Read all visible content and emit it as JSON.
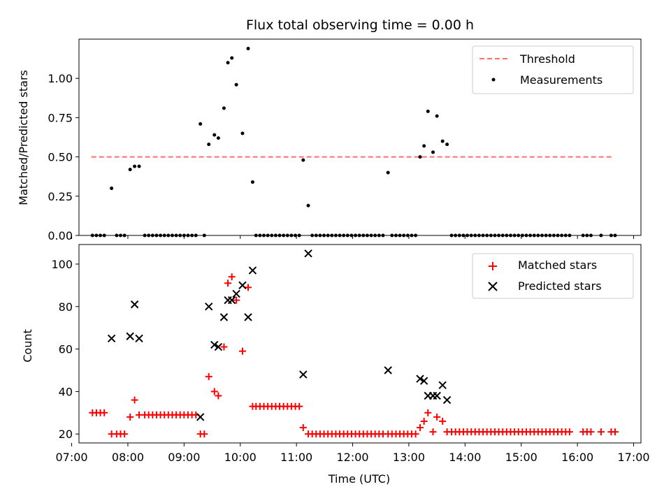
{
  "chart_data": [
    {
      "type": "scatter",
      "title": "Flux total observing time = 0.00 h",
      "xlabel": "",
      "ylabel": "Matched/Predicted stars",
      "xlim": [
        7.13,
        17.13
      ],
      "ylim": [
        0,
        1.25
      ],
      "yticks": [
        "0.00",
        "0.25",
        "0.50",
        "0.75",
        "1.00"
      ],
      "ytick_values": [
        0,
        0.25,
        0.5,
        0.75,
        1.0
      ],
      "threshold": {
        "name": "Threshold",
        "value": 0.5,
        "x_range": [
          7.35,
          16.65
        ],
        "color": "#ff6e6e"
      },
      "legend": [
        "Threshold",
        "Measurements"
      ],
      "series": [
        {
          "name": "Measurements",
          "color": "#000000",
          "x": [
            7.37,
            7.44,
            7.51,
            7.58,
            7.71,
            7.8,
            7.87,
            7.94,
            8.04,
            8.12,
            8.2,
            8.3,
            8.37,
            8.44,
            8.51,
            8.58,
            8.65,
            8.72,
            8.79,
            8.86,
            8.93,
            9.0,
            9.07,
            9.14,
            9.21,
            9.29,
            9.36,
            9.44,
            9.54,
            9.61,
            9.71,
            9.78,
            9.85,
            9.93,
            10.04,
            10.14,
            10.22,
            10.28,
            10.35,
            10.42,
            10.49,
            10.56,
            10.63,
            10.7,
            10.77,
            10.84,
            10.91,
            10.98,
            11.05,
            11.12,
            11.21,
            11.28,
            11.35,
            11.42,
            11.49,
            11.56,
            11.63,
            11.7,
            11.77,
            11.84,
            11.91,
            11.98,
            12.05,
            12.12,
            12.19,
            12.26,
            12.33,
            12.4,
            12.47,
            12.54,
            12.63,
            12.7,
            12.77,
            12.84,
            12.91,
            12.98,
            13.05,
            13.12,
            13.2,
            13.27,
            13.34,
            13.43,
            13.5,
            13.6,
            13.68,
            13.76,
            13.83,
            13.9,
            13.97,
            14.04,
            14.11,
            14.18,
            14.25,
            14.32,
            14.39,
            14.46,
            14.53,
            14.6,
            14.67,
            14.74,
            14.81,
            14.88,
            14.95,
            15.02,
            15.09,
            15.16,
            15.23,
            15.3,
            15.37,
            15.44,
            15.51,
            15.58,
            15.65,
            15.72,
            15.79,
            15.86,
            16.1,
            16.17,
            16.24,
            16.42,
            16.6,
            16.67
          ],
          "y": [
            0,
            0,
            0,
            0,
            0.3,
            0,
            0,
            0,
            0.42,
            0.44,
            0.44,
            0,
            0,
            0,
            0,
            0,
            0,
            0,
            0,
            0,
            0,
            0,
            0,
            0,
            0,
            0.71,
            0,
            0.58,
            0.64,
            0.62,
            0.81,
            1.1,
            1.13,
            0.96,
            0.65,
            1.19,
            0.34,
            0,
            0,
            0,
            0,
            0,
            0,
            0,
            0,
            0,
            0,
            0,
            0,
            0.48,
            0.19,
            0,
            0,
            0,
            0,
            0,
            0,
            0,
            0,
            0,
            0,
            0,
            0,
            0,
            0,
            0,
            0,
            0,
            0,
            0,
            0.4,
            0,
            0,
            0,
            0,
            0,
            0,
            0,
            0.5,
            0.57,
            0.79,
            0.53,
            0.76,
            0.6,
            0.58,
            0,
            0,
            0,
            0,
            0,
            0,
            0,
            0,
            0,
            0,
            0,
            0,
            0,
            0,
            0,
            0,
            0,
            0,
            0,
            0,
            0,
            0,
            0,
            0,
            0,
            0,
            0,
            0,
            0,
            0,
            0,
            0,
            0,
            0,
            0,
            0,
            0
          ]
        }
      ]
    },
    {
      "type": "scatter",
      "title": "",
      "xlabel": "Time (UTC)",
      "ylabel": "Count",
      "xlim": [
        7.13,
        17.13
      ],
      "ylim": [
        15.8,
        109.2
      ],
      "xticks": [
        "07:00",
        "08:00",
        "09:00",
        "10:00",
        "11:00",
        "12:00",
        "13:00",
        "14:00",
        "15:00",
        "16:00",
        "17:00"
      ],
      "xtick_values": [
        7,
        8,
        9,
        10,
        11,
        12,
        13,
        14,
        15,
        16,
        17
      ],
      "yticks": [
        "20",
        "40",
        "60",
        "80",
        "100"
      ],
      "ytick_values": [
        20,
        40,
        60,
        80,
        100
      ],
      "legend": [
        "Matched stars",
        "Predicted stars"
      ],
      "series": [
        {
          "name": "Matched stars",
          "marker": "+",
          "color": "#ff0000",
          "x": [
            7.37,
            7.44,
            7.51,
            7.58,
            7.71,
            7.8,
            7.87,
            7.94,
            8.04,
            8.12,
            8.2,
            8.3,
            8.37,
            8.44,
            8.51,
            8.58,
            8.65,
            8.72,
            8.79,
            8.86,
            8.93,
            9.0,
            9.07,
            9.14,
            9.21,
            9.29,
            9.36,
            9.44,
            9.54,
            9.61,
            9.71,
            9.78,
            9.85,
            9.93,
            10.04,
            10.14,
            10.22,
            10.28,
            10.35,
            10.42,
            10.49,
            10.56,
            10.63,
            10.7,
            10.77,
            10.84,
            10.91,
            10.98,
            11.05,
            11.12,
            11.21,
            11.28,
            11.35,
            11.42,
            11.49,
            11.56,
            11.63,
            11.7,
            11.77,
            11.84,
            11.91,
            11.98,
            12.05,
            12.12,
            12.19,
            12.26,
            12.33,
            12.4,
            12.47,
            12.54,
            12.63,
            12.7,
            12.77,
            12.84,
            12.91,
            12.98,
            13.05,
            13.12,
            13.2,
            13.27,
            13.34,
            13.43,
            13.5,
            13.6,
            13.68,
            13.76,
            13.83,
            13.9,
            13.97,
            14.04,
            14.11,
            14.18,
            14.25,
            14.32,
            14.39,
            14.46,
            14.53,
            14.6,
            14.67,
            14.74,
            14.81,
            14.88,
            14.95,
            15.02,
            15.09,
            15.16,
            15.23,
            15.3,
            15.37,
            15.44,
            15.51,
            15.58,
            15.65,
            15.72,
            15.79,
            15.86,
            16.1,
            16.17,
            16.24,
            16.42,
            16.6,
            16.67
          ],
          "y": [
            30,
            30,
            30,
            30,
            20,
            20,
            20,
            20,
            28,
            36,
            29,
            29,
            29,
            29,
            29,
            29,
            29,
            29,
            29,
            29,
            29,
            29,
            29,
            29,
            29,
            20,
            20,
            47,
            40,
            38,
            61,
            91,
            94,
            83,
            59,
            89,
            33,
            33,
            33,
            33,
            33,
            33,
            33,
            33,
            33,
            33,
            33,
            33,
            33,
            23,
            20,
            20,
            20,
            20,
            20,
            20,
            20,
            20,
            20,
            20,
            20,
            20,
            20,
            20,
            20,
            20,
            20,
            20,
            20,
            20,
            20,
            20,
            20,
            20,
            20,
            20,
            20,
            20,
            23,
            26,
            30,
            21,
            28,
            26,
            21,
            21,
            21,
            21,
            21,
            21,
            21,
            21,
            21,
            21,
            21,
            21,
            21,
            21,
            21,
            21,
            21,
            21,
            21,
            21,
            21,
            21,
            21,
            21,
            21,
            21,
            21,
            21,
            21,
            21,
            21,
            21,
            21,
            21,
            21,
            21,
            21,
            21
          ]
        },
        {
          "name": "Predicted stars",
          "marker": "x",
          "color": "#000000",
          "x": [
            7.71,
            8.04,
            8.12,
            8.2,
            9.29,
            9.44,
            9.54,
            9.61,
            9.71,
            9.78,
            9.85,
            9.93,
            10.04,
            10.14,
            10.22,
            11.12,
            11.21,
            12.63,
            13.2,
            13.27,
            13.34,
            13.43,
            13.5,
            13.6,
            13.68
          ],
          "y": [
            65,
            66,
            81,
            65,
            28,
            80,
            62,
            61,
            75,
            83,
            83,
            86,
            90,
            75,
            97,
            48,
            105,
            50,
            46,
            45,
            38,
            38,
            38,
            43,
            36
          ]
        }
      ]
    }
  ]
}
